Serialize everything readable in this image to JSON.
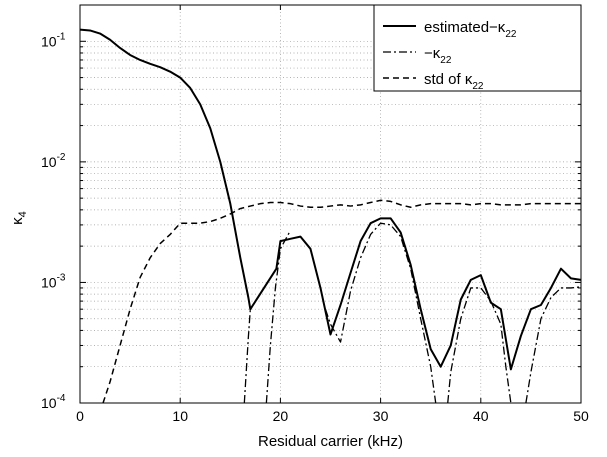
{
  "chart_data": {
    "type": "line",
    "title": "",
    "xlabel": "Residual carrier  (kHz)",
    "ylabel_main": "κ",
    "ylabel_sub": "4",
    "xlim": [
      0,
      50
    ],
    "ylim": [
      0.0001,
      0.2
    ],
    "yscale": "log",
    "grid": true,
    "legend_position": "top-right",
    "x_ticks": [
      {
        "v": 0,
        "label": "0"
      },
      {
        "v": 10,
        "label": "10"
      },
      {
        "v": 20,
        "label": "20"
      },
      {
        "v": 30,
        "label": "30"
      },
      {
        "v": 40,
        "label": "40"
      },
      {
        "v": 50,
        "label": "50"
      }
    ],
    "y_ticks": [
      {
        "v": 0.1,
        "base": "10",
        "exp": "-1"
      },
      {
        "v": 0.01,
        "base": "10",
        "exp": "-2"
      },
      {
        "v": 0.001,
        "base": "10",
        "exp": "-3"
      },
      {
        "v": 0.0001,
        "base": "10",
        "exp": "-4"
      }
    ],
    "legend": [
      {
        "key": "estimated",
        "main": "estimated",
        "sym": "−κ",
        "sub": "22",
        "style": "solid"
      },
      {
        "key": "neg_k22",
        "main": "",
        "sym": "−κ",
        "sub": "22",
        "style": "dashdot"
      },
      {
        "key": "std_k22",
        "main": "std of ",
        "sym": "κ",
        "sub": "22",
        "style": "dashed"
      }
    ],
    "series": [
      {
        "key": "estimated",
        "style": "solid",
        "points": [
          [
            0,
            0.125
          ],
          [
            1,
            0.123
          ],
          [
            2,
            0.116
          ],
          [
            3,
            0.103
          ],
          [
            4,
            0.088
          ],
          [
            5,
            0.077
          ],
          [
            6,
            0.07
          ],
          [
            7,
            0.065
          ],
          [
            8,
            0.061
          ],
          [
            9,
            0.056
          ],
          [
            10,
            0.05
          ],
          [
            11,
            0.041
          ],
          [
            12,
            0.03
          ],
          [
            13,
            0.019
          ],
          [
            14,
            0.01
          ],
          [
            15,
            0.0045
          ],
          [
            16,
            0.0016
          ],
          [
            16.8,
            0.00075
          ],
          [
            17,
            0.0006
          ],
          [
            19.6,
            0.0013
          ],
          [
            20,
            0.0022
          ],
          [
            21,
            0.0023
          ],
          [
            22,
            0.0024
          ],
          [
            23,
            0.0019
          ],
          [
            24,
            0.0009
          ],
          [
            25,
            0.00037
          ],
          [
            26,
            0.00065
          ],
          [
            27,
            0.0012
          ],
          [
            28,
            0.0022
          ],
          [
            29,
            0.0031
          ],
          [
            30,
            0.0034
          ],
          [
            31,
            0.0034
          ],
          [
            32,
            0.0026
          ],
          [
            33,
            0.0014
          ],
          [
            34,
            0.0006
          ],
          [
            35,
            0.00028
          ],
          [
            36,
            0.0002
          ],
          [
            37,
            0.0003
          ],
          [
            38,
            0.00072
          ],
          [
            39,
            0.00105
          ],
          [
            40,
            0.00115
          ],
          [
            41,
            0.00068
          ],
          [
            42,
            0.0006
          ],
          [
            43,
            0.00019
          ],
          [
            44,
            0.00036
          ],
          [
            45,
            0.0006
          ],
          [
            46,
            0.00065
          ],
          [
            47,
            0.0009
          ],
          [
            48,
            0.0013
          ],
          [
            49,
            0.00108
          ],
          [
            50,
            0.00105
          ]
        ]
      },
      {
        "key": "neg_k22",
        "style": "dashdot",
        "segments": [
          [
            [
              16.4,
              0.0001
            ],
            [
              16.8,
              0.00035
            ],
            [
              17,
              0.0006
            ]
          ],
          [
            [
              18.6,
              0.0001
            ],
            [
              19,
              0.0003
            ],
            [
              19.5,
              0.0009
            ],
            [
              20,
              0.0019
            ],
            [
              21,
              0.0027
            ]
          ],
          [
            [
              24.5,
              0.0006
            ],
            [
              25,
              0.00045
            ],
            [
              26,
              0.00032
            ],
            [
              27,
              0.00085
            ],
            [
              28,
              0.0016
            ],
            [
              29,
              0.0025
            ],
            [
              30,
              0.0031
            ],
            [
              31,
              0.003
            ],
            [
              32,
              0.0024
            ],
            [
              33,
              0.0013
            ],
            [
              34,
              0.0005
            ],
            [
              35,
              0.0002
            ],
            [
              35.5,
              0.0001
            ]
          ],
          [
            [
              36.7,
              0.0001
            ],
            [
              37,
              0.00018
            ],
            [
              38,
              0.0005
            ],
            [
              39,
              0.0009
            ],
            [
              40,
              0.0009
            ],
            [
              41,
              0.0007
            ],
            [
              42,
              0.00045
            ],
            [
              42.5,
              0.0002
            ],
            [
              43,
              0.0001
            ]
          ],
          [
            [
              44.5,
              0.0001
            ],
            [
              45,
              0.00018
            ],
            [
              46,
              0.0005
            ],
            [
              47,
              0.00075
            ],
            [
              48,
              0.0009
            ],
            [
              49,
              0.0009
            ],
            [
              50,
              0.00092
            ]
          ]
        ]
      },
      {
        "key": "std_k22",
        "style": "dashed",
        "points": [
          [
            2.3,
            0.0001
          ],
          [
            3,
            0.00015
          ],
          [
            4,
            0.0003
          ],
          [
            5,
            0.0006
          ],
          [
            6,
            0.0011
          ],
          [
            7,
            0.0016
          ],
          [
            8,
            0.0021
          ],
          [
            9,
            0.0025
          ],
          [
            10,
            0.0031
          ],
          [
            11,
            0.0031
          ],
          [
            12,
            0.0031
          ],
          [
            13,
            0.0032
          ],
          [
            14,
            0.0034
          ],
          [
            15,
            0.0037
          ],
          [
            16,
            0.0041
          ],
          [
            17,
            0.0043
          ],
          [
            18,
            0.0045
          ],
          [
            19,
            0.0046
          ],
          [
            20,
            0.0046
          ],
          [
            21,
            0.0045
          ],
          [
            22,
            0.0043
          ],
          [
            23,
            0.0042
          ],
          [
            24,
            0.0042
          ],
          [
            25,
            0.0043
          ],
          [
            26,
            0.0044
          ],
          [
            27,
            0.0043
          ],
          [
            28,
            0.0044
          ],
          [
            29,
            0.0046
          ],
          [
            30,
            0.0048
          ],
          [
            31,
            0.0047
          ],
          [
            32,
            0.0044
          ],
          [
            33,
            0.0042
          ],
          [
            34,
            0.0044
          ],
          [
            35,
            0.0045
          ],
          [
            36,
            0.0045
          ],
          [
            37,
            0.0045
          ],
          [
            38,
            0.0045
          ],
          [
            39,
            0.0044
          ],
          [
            40,
            0.0045
          ],
          [
            41,
            0.0045
          ],
          [
            42,
            0.0044
          ],
          [
            43,
            0.0044
          ],
          [
            44,
            0.0044
          ],
          [
            45,
            0.0045
          ],
          [
            46,
            0.0045
          ],
          [
            47,
            0.0045
          ],
          [
            48,
            0.0045
          ],
          [
            49,
            0.0045
          ],
          [
            50,
            0.0045
          ]
        ]
      }
    ]
  }
}
